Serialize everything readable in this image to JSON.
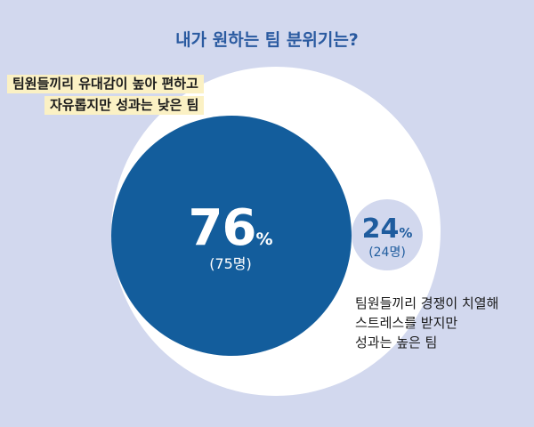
{
  "title": "내가 원하는 팀 분위기는?",
  "chart_data": {
    "type": "bubble",
    "series": [
      {
        "label_lines": [
          "팀원들끼리 유대감이 높아 편하고",
          "자유롭지만 성과는 낮은 팀"
        ],
        "percent": 76,
        "percent_text": "76",
        "count_text": "(75명)",
        "color": "#135d9c"
      },
      {
        "label_lines": [
          "팀원들끼리 경쟁이 치열해",
          "스트레스를 받지만",
          "성과는 높은 팀"
        ],
        "percent": 24,
        "percent_text": "24",
        "count_text": "(24명)",
        "color": "#d2d8ee"
      }
    ],
    "unit": "%",
    "colors": {
      "background": "#d2d8ee",
      "outer_circle": "#ffffff",
      "title": "#2a5aa0",
      "highlight": "#fbf1c4"
    }
  }
}
